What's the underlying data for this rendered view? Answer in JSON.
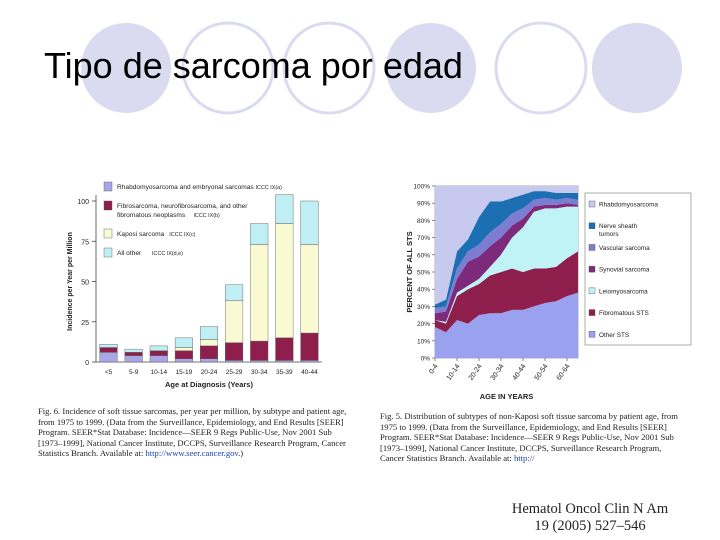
{
  "slide": {
    "title": "Tipo de sarcoma por edad",
    "decor_color": "#dadaf0",
    "citation_line1": "Hematol Oncol Clin N Am",
    "citation_line2": "19 (2005) 527–546"
  },
  "chart_data": [
    {
      "type": "bar",
      "stacked": true,
      "xlabel": "Age at Diagnosis (Years)",
      "ylabel": "Incidence per Year per Million",
      "ylim": [
        0,
        100
      ],
      "yticks": [
        0,
        25,
        50,
        75,
        100
      ],
      "categories": [
        "<5",
        "5-9",
        "10-14",
        "15-19",
        "20-24",
        "25-29",
        "30-34",
        "35-39",
        "40-44"
      ],
      "legend_position": "top-left",
      "series": [
        {
          "name": "Rhabdomyosarcoma and embryonal sarcomas",
          "code": "ICCC IX(a)",
          "color": "#a9a6e6",
          "values": [
            6,
            4,
            4,
            2,
            2,
            1,
            1,
            1,
            1
          ]
        },
        {
          "name": "Fibrosarcoma, neurofibrosarcoma, and other fibromatous neoplasms",
          "code": "ICCC IX(b)",
          "color": "#8e1f4c",
          "values": [
            3,
            2,
            3,
            5,
            8,
            11,
            12,
            14,
            17
          ]
        },
        {
          "name": "Kaposi sarcoma",
          "code": "ICCC IX(c)",
          "color": "#fafad2",
          "values": [
            0,
            0,
            0,
            2,
            4,
            26,
            60,
            71,
            55
          ]
        },
        {
          "name": "All other",
          "code": "ICCC IX(d,e)",
          "color": "#bfeef4",
          "values": [
            2,
            2,
            3,
            6,
            8,
            10,
            13,
            18,
            27
          ]
        }
      ]
    },
    {
      "type": "area",
      "stacked": true,
      "xlabel": "AGE IN YEARS",
      "ylabel": "PERCENT OF ALL STS",
      "ylim": [
        0,
        100
      ],
      "yticks": [
        "0%",
        "10%",
        "20%",
        "30%",
        "40%",
        "50%",
        "60%",
        "70%",
        "80%",
        "90%",
        "100%"
      ],
      "x_labels": [
        "0-4",
        "10-14",
        "20-24",
        "30-34",
        "40-44",
        "50-54",
        "60-64"
      ],
      "x": [
        0,
        1,
        2,
        3,
        4,
        5,
        6,
        7,
        8,
        9,
        10,
        11,
        12,
        13
      ],
      "legend_position": "right",
      "series": [
        {
          "name": "Other STS",
          "color": "#9aa1ee",
          "values": [
            18,
            15,
            22,
            20,
            25,
            26,
            26,
            28,
            28,
            30,
            32,
            33,
            36,
            38
          ]
        },
        {
          "name": "Fibromatous STS",
          "color": "#8e1f4c",
          "values": [
            4,
            5,
            14,
            20,
            18,
            22,
            24,
            24,
            22,
            22,
            20,
            20,
            22,
            24
          ]
        },
        {
          "name": "Leiomyosarcoma",
          "color": "#bff3f6",
          "values": [
            0,
            1,
            2,
            2,
            3,
            5,
            10,
            18,
            26,
            33,
            35,
            34,
            30,
            26
          ]
        },
        {
          "name": "Synovial sarcoma",
          "color": "#7e2a7a",
          "values": [
            4,
            6,
            8,
            14,
            13,
            12,
            10,
            7,
            5,
            3,
            2,
            2,
            2,
            1
          ]
        },
        {
          "name": "Vascular sarcoma",
          "color": "#7c7dd2",
          "values": [
            3,
            3,
            6,
            6,
            7,
            8,
            8,
            7,
            6,
            4,
            4,
            3,
            3,
            3
          ]
        },
        {
          "name": "Nerve sheath tumors",
          "color": "#1c6fb2",
          "values": [
            2,
            4,
            10,
            7,
            16,
            18,
            13,
            9,
            8,
            5,
            4,
            4,
            3,
            4
          ]
        },
        {
          "name": "Rhabdomyosarcoma",
          "color": "#c8c9ef",
          "values": [
            69,
            66,
            38,
            31,
            18,
            9,
            9,
            7,
            5,
            3,
            3,
            4,
            4,
            4
          ]
        }
      ]
    }
  ],
  "captions": {
    "fig6_text": "Fig. 6. Incidence of soft tissue sarcomas, per year per million, by subtype and patient age, from 1975 to 1999. (Data from the Surveillance, Epidemiology, and End Results [SEER] Program. SEER*Stat Database: Incidence—SEER 9 Regs Public-Use, Nov 2001 Sub [1973–1999], National Cancer Institute, DCCPS, Surveillance Research Program, Cancer Statistics Branch. Available at: ",
    "fig6_link": "http://www.seer.cancer.gov",
    "fig6_end": ".)",
    "fig5_text": "Fig. 5. Distribution of subtypes of non-Kaposi soft tissue sarcoma by patient age, from 1975 to 1999. (Data from the Surveillance, Epidemiology, and End Results [SEER] Program. SEER*Stat Database: Incidence—SEER 9 Regs Public-Use, Nov 2001 Sub [1973–1999], National Cancer Institute, DCCPS, Surveillance Research Program, Cancer Statistics Branch. Available at: ",
    "fig5_link": "http://"
  }
}
